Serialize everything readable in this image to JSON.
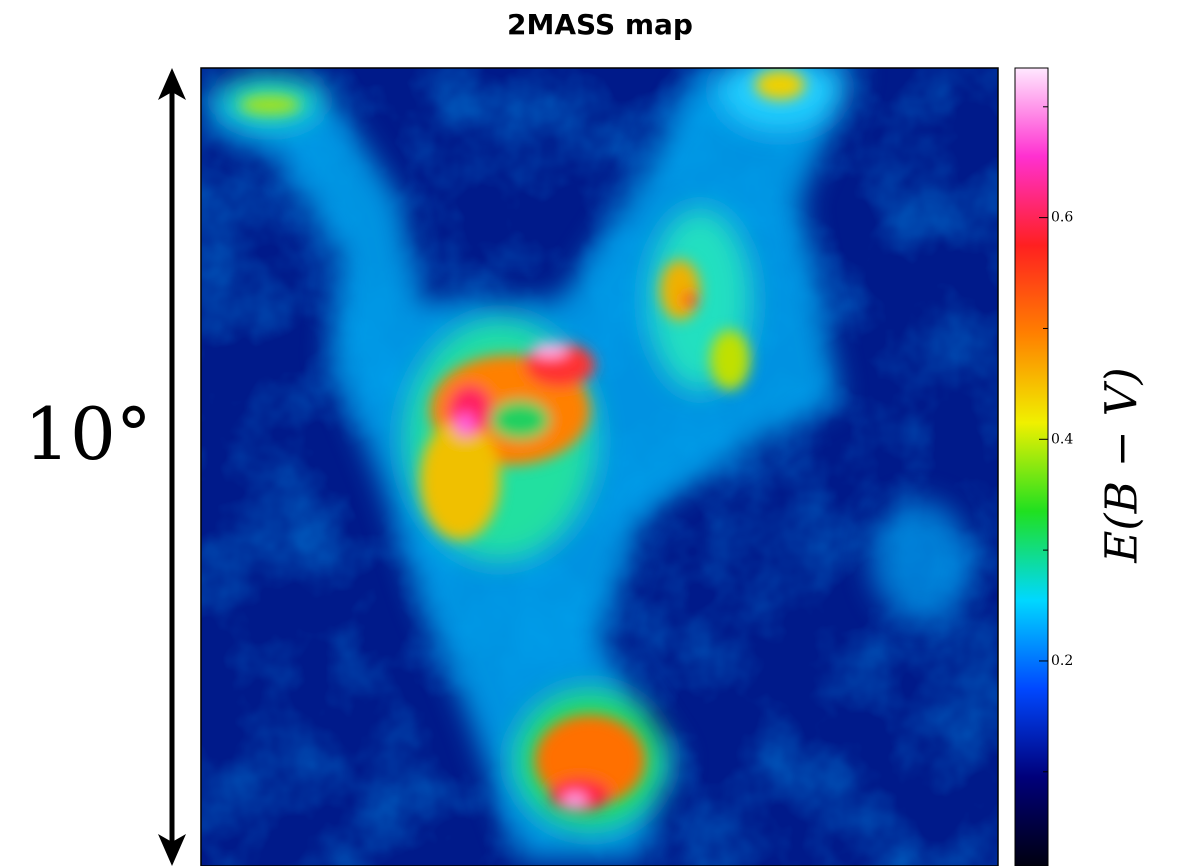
{
  "chart_data": {
    "type": "heatmap",
    "title": "2MASS map",
    "scale_label": "10°",
    "colorbar_label": "E(B − V)",
    "clim": [
      0.015,
      0.735
    ],
    "cticks": [
      0.2,
      0.4,
      0.6
    ],
    "cminor_ticks": [
      0.1,
      0.3,
      0.5,
      0.7
    ],
    "colormap": [
      "#000010",
      "#00007a",
      "#0048ff",
      "#00d8ff",
      "#20e020",
      "#f0f000",
      "#ff8000",
      "#ff2020",
      "#ff30d0",
      "#ffe8ff"
    ]
  }
}
